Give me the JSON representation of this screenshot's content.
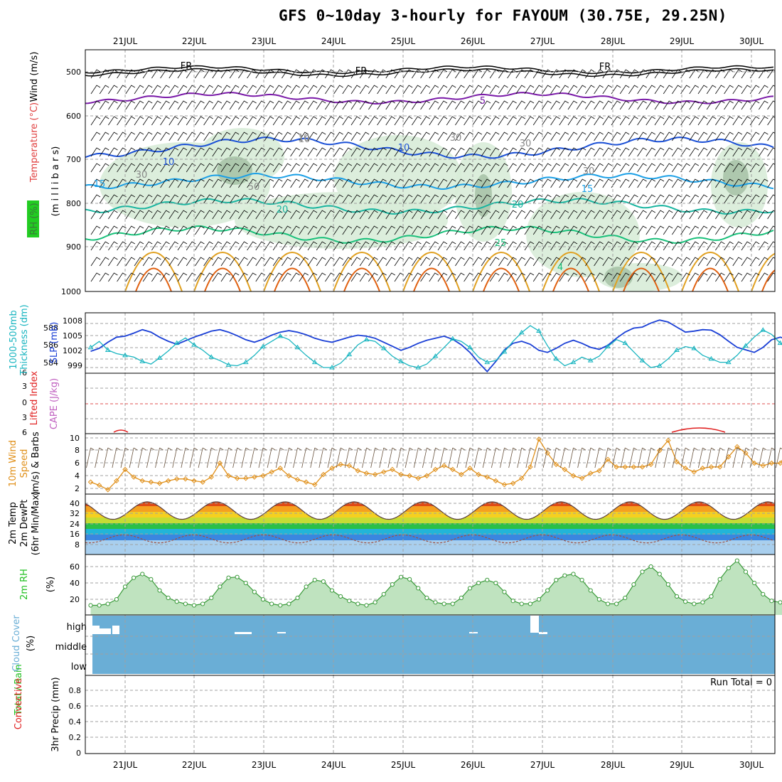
{
  "title": "GFS 0~10day 3-hourly for FAYOUM (30.75E, 29.25N)",
  "dates": [
    "21JUL",
    "22JUL",
    "23JUL",
    "24JUL",
    "25JUL",
    "26JUL",
    "27JUL",
    "28JUL",
    "29JUL",
    "30JUL"
  ],
  "colors": {
    "wind_freezing": "#000000",
    "iso5": "#7a1aa8",
    "iso10": "#1a4fd6",
    "iso15": "#1a9fe6",
    "iso20": "#19b5a0",
    "iso25": "#19c07a",
    "iso_warm": "#e0a020",
    "iso_hot": "#e06010",
    "rh": "#3a7a3a",
    "slp": "#1a3fd6",
    "thickness": "#19b5c0",
    "cape": "#c060c0",
    "lifted": "#e02020",
    "wind10m": "#e0901a",
    "rh2m": "#22c022",
    "cloud": "#6aaed6"
  },
  "panels": {
    "upper_air": {
      "ylabels": [
        "Wind (m/s)",
        "Temperature (°C)",
        "RH (%)",
        "(m i l l i b a r s)"
      ],
      "yticks": [
        "500",
        "600",
        "700",
        "800",
        "900",
        "1000"
      ],
      "contour_labels": [
        "FR",
        "FR",
        "FR",
        "5",
        "10",
        "10",
        "10",
        "15",
        "15",
        "20",
        "20",
        "25",
        "30",
        "30",
        "50",
        "30",
        "30",
        "10",
        "4"
      ]
    },
    "slp_thickness": {
      "ylabels": [
        "1000-500mb",
        "Thickness (dm)",
        "SLP (mb)"
      ],
      "yticks_left": [
        "588",
        "586",
        "584"
      ],
      "yticks_right": [
        "1008",
        "1005",
        "1002",
        "999"
      ]
    },
    "lifted_cape": {
      "ylabels": [
        "Lifted Index",
        "CAPE (J/kg)"
      ],
      "yticks": [
        "6",
        "3",
        "0",
        "3",
        "6"
      ]
    },
    "wind10m": {
      "ylabels": [
        "10m Wind",
        "Speed",
        "(m/s) & Barbs"
      ],
      "yticks": [
        "10",
        "8",
        "6",
        "4",
        "2"
      ]
    },
    "temp2m": {
      "ylabels": [
        "2m Temp",
        "2m DewPt",
        "(6hr Min/Max)"
      ],
      "yticks": [
        "40",
        "32",
        "24",
        "16",
        "8"
      ]
    },
    "rh2m": {
      "ylabels": [
        "2m RH",
        "(%)"
      ],
      "yticks": [
        "60",
        "40",
        "20"
      ]
    },
    "cloud": {
      "ylabels": [
        "Cloud Cover",
        "(%)"
      ],
      "yticks": [
        "high",
        "middle",
        "low"
      ]
    },
    "precip": {
      "ylabels": [
        "Total / Rain",
        "Convective",
        "3hr Precip (mm)"
      ],
      "yticks": [
        "0.8",
        "0.6",
        "0.4",
        "0.2",
        "0"
      ],
      "run_total": "Run Total = 0"
    }
  },
  "chart_data": {
    "type": "line",
    "x_unit": "3-hourly steps from 2020-07-20 12Z (0~10 day)",
    "x_labels": [
      "21JUL",
      "22JUL",
      "23JUL",
      "24JUL",
      "25JUL",
      "26JUL",
      "27JUL",
      "28JUL",
      "29JUL",
      "30JUL"
    ],
    "slp_mb": [
      1002.2,
      1002.8,
      1004.0,
      1005.0,
      1005.2,
      1005.8,
      1006.5,
      1006.0,
      1005.0,
      1004.2,
      1003.6,
      1004.3,
      1005.0,
      1005.6,
      1006.2,
      1006.5,
      1006.0,
      1005.3,
      1004.5,
      1004.0,
      1004.6,
      1005.4,
      1006.0,
      1006.3,
      1006.0,
      1005.5,
      1004.8,
      1004.3,
      1004.0,
      1004.5,
      1005.0,
      1005.4,
      1005.2,
      1004.8,
      1004.0,
      1003.2,
      1002.4,
      1003.0,
      1003.8,
      1004.4,
      1004.8,
      1005.2,
      1004.6,
      1003.5,
      1002.0,
      1000.0,
      998.2,
      1000.2,
      1002.5,
      1003.8,
      1004.2,
      1003.6,
      1002.4,
      1002.0,
      1002.8,
      1003.8,
      1004.4,
      1003.8,
      1003.0,
      1002.6,
      1003.4,
      1004.8,
      1006.0,
      1006.8,
      1007.0,
      1007.8,
      1008.4,
      1008.0,
      1007.0,
      1006.0,
      1006.2,
      1006.5,
      1006.4,
      1005.5,
      1004.2,
      1003.0,
      1002.5,
      1002.0,
      1003.0,
      1004.5,
      1005.0,
      1004.5,
      1003.8,
      1003.0,
      1003.2,
      1003.8,
      1004.4,
      1005.0
    ],
    "thickness_dm": [
      586.3,
      587.0,
      586.0,
      585.6,
      585.4,
      585.2,
      584.7,
      584.4,
      585.1,
      585.9,
      586.8,
      587.4,
      586.6,
      586.0,
      585.2,
      584.8,
      584.3,
      584.2,
      584.6,
      585.4,
      586.4,
      587.0,
      587.6,
      587.2,
      586.3,
      585.4,
      584.6,
      584.0,
      584.0,
      584.5,
      585.5,
      586.6,
      587.2,
      587.0,
      586.2,
      585.3,
      584.7,
      584.2,
      584.0,
      584.4,
      585.3,
      586.3,
      587.3,
      587.0,
      586.3,
      585.2,
      584.6,
      584.8,
      585.8,
      587.0,
      588.0,
      588.8,
      588.2,
      586.5,
      585.0,
      584.2,
      584.6,
      585.2,
      584.8,
      585.3,
      586.4,
      587.2,
      586.8,
      585.8,
      584.8,
      584.0,
      584.2,
      585.0,
      586.0,
      586.4,
      586.2,
      585.4,
      585.0,
      584.6,
      584.6,
      585.4,
      586.5,
      587.5,
      588.3,
      587.8,
      586.8,
      586.0,
      585.8,
      586.6,
      587.3,
      588.0,
      587.5,
      586.8
    ],
    "lifted_index": [
      {
        "day": "21JUL",
        "min": 5.6
      },
      {
        "day": "29JUL",
        "min": 5.5
      }
    ],
    "wind10m_ms": [
      3.0,
      2.5,
      1.8,
      3.2,
      5.0,
      3.8,
      3.2,
      3.0,
      2.8,
      3.2,
      3.5,
      3.5,
      3.2,
      3.0,
      3.8,
      6.0,
      4.0,
      3.6,
      3.6,
      3.8,
      4.0,
      4.6,
      5.2,
      4.0,
      3.4,
      3.0,
      2.6,
      4.2,
      5.2,
      5.8,
      5.6,
      4.8,
      4.4,
      4.2,
      4.6,
      5.0,
      4.2,
      4.0,
      3.6,
      4.0,
      5.0,
      5.6,
      5.0,
      4.2,
      5.2,
      4.2,
      3.8,
      3.2,
      2.6,
      2.8,
      3.6,
      5.4,
      9.8,
      7.6,
      5.8,
      5.0,
      4.0,
      3.6,
      4.4,
      4.8,
      6.6,
      5.4,
      5.4,
      5.4,
      5.4,
      5.8,
      8.0,
      9.6,
      6.2,
      5.2,
      4.6,
      5.2,
      5.4,
      5.4,
      7.0,
      8.6,
      7.6,
      6.0,
      5.6,
      6.0,
      6.0,
      8.0,
      7.0,
      5.4,
      5.2,
      6.0,
      4.0,
      3.8
    ],
    "temp2m_c": {
      "max": [
        40,
        40,
        40,
        41,
        41,
        40,
        40,
        39,
        40,
        40
      ],
      "min": [
        28,
        28,
        29,
        29,
        29,
        30,
        29,
        28,
        28,
        28
      ]
    },
    "dewpt2m_c": [
      12,
      16,
      16,
      16,
      12,
      14,
      12,
      14,
      12,
      16,
      14,
      12,
      18,
      20,
      20,
      20,
      12,
      16,
      17,
      18
    ],
    "rh2m_pct": [
      10,
      10,
      12,
      18,
      35,
      47,
      52,
      45,
      30,
      20,
      15,
      12,
      10,
      12,
      20,
      35,
      47,
      48,
      40,
      28,
      18,
      12,
      10,
      12,
      20,
      35,
      44,
      42,
      30,
      22,
      16,
      12,
      10,
      14,
      25,
      38,
      48,
      45,
      33,
      20,
      14,
      12,
      12,
      20,
      33,
      40,
      44,
      40,
      28,
      16,
      12,
      12,
      18,
      30,
      44,
      50,
      52,
      44,
      30,
      18,
      12,
      12,
      20,
      38,
      55,
      62,
      52,
      38,
      22,
      15,
      12,
      14,
      22,
      45,
      60,
      70,
      55,
      40,
      25,
      16,
      14,
      18,
      30,
      46,
      55,
      56,
      44,
      35
    ]
  }
}
